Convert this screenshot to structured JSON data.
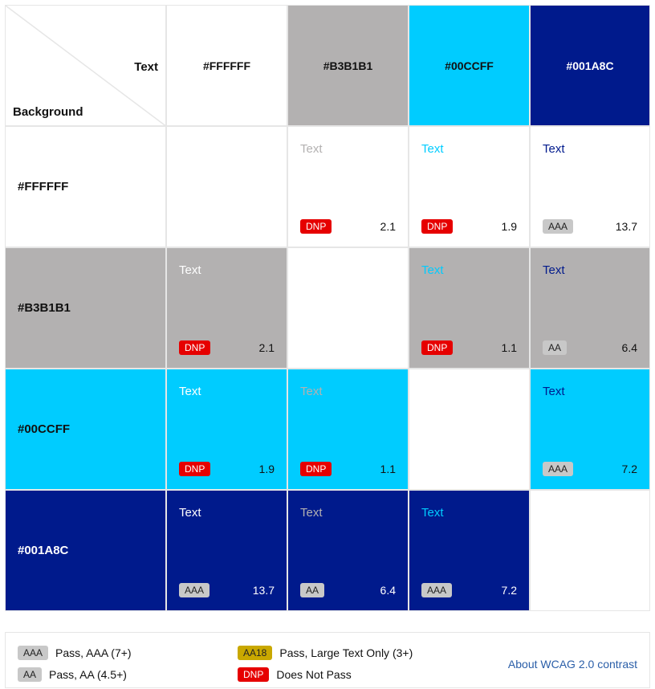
{
  "corner": {
    "text_label": "Text",
    "background_label": "Background"
  },
  "columns": [
    {
      "label": "#FFFFFF",
      "color": "#ffffff",
      "text_color": "#111111"
    },
    {
      "label": "#B3B1B1",
      "color": "#b3b1b1",
      "text_color": "#111111"
    },
    {
      "label": "#00CCFF",
      "color": "#00ccff",
      "text_color": "#111111"
    },
    {
      "label": "#001A8C",
      "color": "#001a8c",
      "text_color": "#ffffff"
    }
  ],
  "rows": [
    {
      "label": "#FFFFFF",
      "color": "#ffffff",
      "text_color": "#111111",
      "cells": [
        null,
        {
          "sample": "Text",
          "badge": "DNP",
          "ratio": "2.1"
        },
        {
          "sample": "Text",
          "badge": "DNP",
          "ratio": "1.9"
        },
        {
          "sample": "Text",
          "badge": "AAA",
          "ratio": "13.7"
        }
      ]
    },
    {
      "label": "#B3B1B1",
      "color": "#b3b1b1",
      "text_color": "#111111",
      "cells": [
        {
          "sample": "Text",
          "badge": "DNP",
          "ratio": "2.1"
        },
        null,
        {
          "sample": "Text",
          "badge": "DNP",
          "ratio": "1.1"
        },
        {
          "sample": "Text",
          "badge": "AA",
          "ratio": "6.4"
        }
      ]
    },
    {
      "label": "#00CCFF",
      "color": "#00ccff",
      "text_color": "#111111",
      "cells": [
        {
          "sample": "Text",
          "badge": "DNP",
          "ratio": "1.9"
        },
        {
          "sample": "Text",
          "badge": "DNP",
          "ratio": "1.1"
        },
        null,
        {
          "sample": "Text",
          "badge": "AAA",
          "ratio": "7.2"
        }
      ]
    },
    {
      "label": "#001A8C",
      "color": "#001a8c",
      "text_color": "#ffffff",
      "cells": [
        {
          "sample": "Text",
          "badge": "AAA",
          "ratio": "13.7"
        },
        {
          "sample": "Text",
          "badge": "AA",
          "ratio": "6.4"
        },
        {
          "sample": "Text",
          "badge": "AAA",
          "ratio": "7.2"
        },
        null
      ]
    }
  ],
  "legend": {
    "aaa": {
      "badge": "AAA",
      "label": "Pass, AAA (7+)"
    },
    "aa": {
      "badge": "AA",
      "label": "Pass, AA (4.5+)"
    },
    "aa18": {
      "badge": "AA18",
      "label": "Pass, Large Text Only (3+)"
    },
    "dnp": {
      "badge": "DNP",
      "label": "Does Not Pass"
    },
    "link": "About WCAG 2.0 contrast"
  },
  "colors": {
    "dnp": "#e60000",
    "pass": "#c8c8c8",
    "aa18": "#c9a800",
    "link": "#2a5ea8"
  }
}
